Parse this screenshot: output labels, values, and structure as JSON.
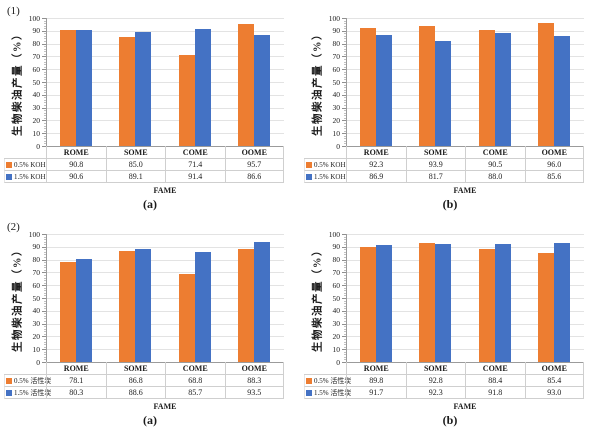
{
  "figure": {
    "background": "#ffffff",
    "colors": {
      "series_orange": "#ED7D31",
      "series_blue": "#4472C4",
      "gridline": "#e3e3e3",
      "axis_line": "#9b9b9b",
      "table_border": "#cfcfcf",
      "text": "#1a1a1a"
    }
  },
  "chart_data": [
    {
      "type": "bar",
      "panel_label": "(1)",
      "caption": "(a)",
      "ylabel": "生物柴油产量（%）",
      "xlabel": "FAME",
      "ylim": [
        0,
        100
      ],
      "ytick_step": 10,
      "grid": true,
      "legend_position": "table-left",
      "categories": [
        "ROME",
        "SOME",
        "COME",
        "OOME"
      ],
      "series": [
        {
          "name": "0.5% KOH",
          "color": "#ED7D31",
          "values": [
            90.8,
            85.0,
            71.4,
            95.7
          ]
        },
        {
          "name": "1.5% KOH",
          "color": "#4472C4",
          "values": [
            90.6,
            89.1,
            91.4,
            86.6
          ]
        }
      ]
    },
    {
      "type": "bar",
      "panel_label": "",
      "caption": "(b)",
      "ylabel": "生物柴油产量（%）",
      "xlabel": "FAME",
      "ylim": [
        0,
        100
      ],
      "ytick_step": 10,
      "grid": true,
      "legend_position": "table-left",
      "categories": [
        "ROME",
        "SOME",
        "COME",
        "OOME"
      ],
      "series": [
        {
          "name": "0.5% KOH",
          "color": "#ED7D31",
          "values": [
            92.3,
            93.9,
            90.5,
            96.0
          ]
        },
        {
          "name": "1.5% KOH",
          "color": "#4472C4",
          "values": [
            86.9,
            81.7,
            88.0,
            85.6
          ]
        }
      ]
    },
    {
      "type": "bar",
      "panel_label": "(2)",
      "caption": "(a)",
      "ylabel": "生物柴油产量（%）",
      "xlabel": "FAME",
      "ylim": [
        0,
        100
      ],
      "ytick_step": 10,
      "grid": true,
      "legend_position": "table-left",
      "categories": [
        "ROME",
        "SOME",
        "COME",
        "OOME"
      ],
      "series": [
        {
          "name": "0.5% 活性炭",
          "color": "#ED7D31",
          "values": [
            78.1,
            86.8,
            68.8,
            88.3
          ]
        },
        {
          "name": "1.5% 活性炭",
          "color": "#4472C4",
          "values": [
            80.3,
            88.6,
            85.7,
            93.5
          ]
        }
      ]
    },
    {
      "type": "bar",
      "panel_label": "",
      "caption": "(b)",
      "ylabel": "生物柴油产量（%）",
      "xlabel": "FAME",
      "ylim": [
        0,
        100
      ],
      "ytick_step": 10,
      "grid": true,
      "legend_position": "table-left",
      "categories": [
        "ROME",
        "SOME",
        "COME",
        "OOME"
      ],
      "series": [
        {
          "name": "0.5% 活性炭",
          "color": "#ED7D31",
          "values": [
            89.8,
            92.8,
            88.4,
            85.4
          ]
        },
        {
          "name": "1.5% 活性炭",
          "color": "#4472C4",
          "values": [
            91.7,
            92.3,
            91.8,
            93.0
          ]
        }
      ]
    }
  ]
}
